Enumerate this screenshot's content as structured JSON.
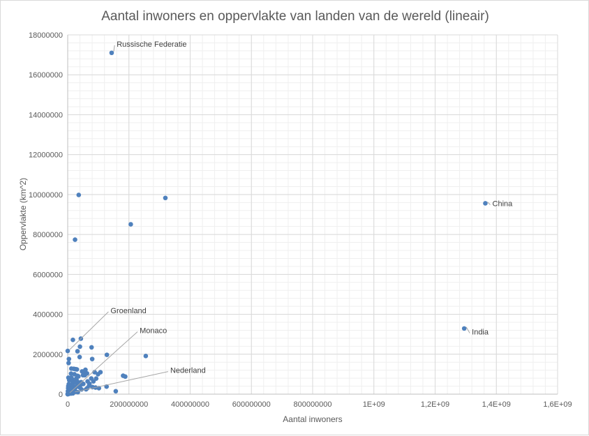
{
  "chart_data": {
    "type": "scatter",
    "title": "Aantal inwoners en oppervlakte van landen van de wereld (lineair)",
    "xlabel": "Aantal inwoners",
    "ylabel": "Oppervlakte (km^2)",
    "xlim": [
      0,
      1600000000
    ],
    "ylim": [
      0,
      18000000
    ],
    "grid": true,
    "color": "#4f81bd",
    "x_ticks": [
      0,
      200000000,
      400000000,
      600000000,
      800000000,
      1000000000,
      1200000000,
      1400000000,
      1600000000
    ],
    "x_tick_labels": [
      "0",
      "200000000",
      "400000000",
      "600000000",
      "800000000",
      "1E+09",
      "1,2E+09",
      "1,4E+09",
      "1,6E+09"
    ],
    "y_ticks": [
      0,
      2000000,
      4000000,
      6000000,
      8000000,
      10000000,
      12000000,
      14000000,
      16000000,
      18000000
    ],
    "y_tick_labels": [
      "0",
      "2000000",
      "4000000",
      "6000000",
      "8000000",
      "10000000",
      "12000000",
      "14000000",
      "16000000",
      "18000000"
    ],
    "points": [
      [
        143500000,
        17100000
      ],
      [
        1364000000,
        9560000
      ],
      [
        1295000000,
        3290000
      ],
      [
        319000000,
        9830000
      ],
      [
        36000000,
        9980000
      ],
      [
        206000000,
        8510000
      ],
      [
        24000000,
        7740000
      ],
      [
        43000000,
        2780000
      ],
      [
        40000000,
        2380000
      ],
      [
        17000000,
        2720000
      ],
      [
        78000000,
        2345000
      ],
      [
        128000000,
        1970000
      ],
      [
        255000000,
        1910000
      ],
      [
        4000000,
        1760000
      ],
      [
        80000000,
        1760000
      ],
      [
        32000000,
        2150000
      ],
      [
        39000000,
        1860000
      ],
      [
        3000000,
        1560000
      ],
      [
        12000000,
        1280000
      ],
      [
        20000000,
        1270000
      ],
      [
        26000000,
        1250000
      ],
      [
        30000000,
        1240000
      ],
      [
        58000000,
        1220000
      ],
      [
        54000000,
        1130000
      ],
      [
        47000000,
        1140000
      ],
      [
        107000000,
        1100000
      ],
      [
        99000000,
        1000000
      ],
      [
        11000000,
        1030000
      ],
      [
        22000000,
        1000000
      ],
      [
        56000000,
        950000
      ],
      [
        32000000,
        918000
      ],
      [
        50000000,
        950000
      ],
      [
        12000000,
        825000
      ],
      [
        2300000,
        824000
      ],
      [
        181000000,
        923000
      ],
      [
        188000000,
        881000
      ],
      [
        77000000,
        784000
      ],
      [
        28000000,
        780000
      ],
      [
        14000000,
        753000
      ],
      [
        5000000,
        700000
      ],
      [
        16000000,
        640000
      ],
      [
        26000000,
        650000
      ],
      [
        44000000,
        600000
      ],
      [
        65000000,
        640000
      ],
      [
        38000000,
        580000
      ],
      [
        22000000,
        587000
      ],
      [
        47000000,
        505000
      ],
      [
        51000000,
        513000
      ],
      [
        33000000,
        450000
      ],
      [
        36000000,
        447000
      ],
      [
        91000000,
        331000
      ],
      [
        127000000,
        378000
      ],
      [
        81000000,
        357000
      ],
      [
        64000000,
        301000
      ],
      [
        60000000,
        242000
      ],
      [
        102000000,
        300000
      ],
      [
        157000000,
        147000
      ],
      [
        45000000,
        238000
      ],
      [
        9000000,
        450000
      ],
      [
        10000000,
        340000
      ],
      [
        4000000,
        268000
      ],
      [
        22000000,
        239000
      ],
      [
        19000000,
        237000
      ],
      [
        2000000,
        181000
      ],
      [
        25000000,
        120000
      ],
      [
        15000000,
        130000
      ],
      [
        5000000,
        110000
      ],
      [
        10000000,
        92000
      ],
      [
        17000000,
        41500
      ],
      [
        11000000,
        30500
      ],
      [
        7000000,
        88000
      ],
      [
        1500000,
        60000
      ],
      [
        3000000,
        45000
      ],
      [
        1000000,
        30000
      ],
      [
        500000,
        20000
      ],
      [
        2000000,
        400000
      ],
      [
        1500000,
        300000
      ],
      [
        800000,
        150000
      ],
      [
        6000000,
        200000
      ],
      [
        8000000,
        350000
      ],
      [
        3500000,
        500000
      ],
      [
        12000000,
        470000
      ],
      [
        18000000,
        400000
      ],
      [
        28000000,
        360000
      ],
      [
        23000000,
        200000
      ],
      [
        33000000,
        100000
      ],
      [
        40000000,
        330000
      ],
      [
        70000000,
        430000
      ],
      [
        84000000,
        640000
      ],
      [
        93000000,
        780000
      ],
      [
        5500000,
        52000
      ],
      [
        9500000,
        160000
      ],
      [
        13500000,
        210000
      ],
      [
        4500000,
        70000
      ],
      [
        7500000,
        120000
      ],
      [
        2500000,
        90000
      ],
      [
        11500000,
        260000
      ],
      [
        15500000,
        300000
      ],
      [
        20500000,
        120000
      ],
      [
        6500000,
        35000
      ],
      [
        3000000,
        10000
      ],
      [
        1200000,
        5000
      ],
      [
        300000,
        1000
      ],
      [
        38000,
        2
      ],
      [
        1000,
        5000
      ],
      [
        40000,
        300
      ],
      [
        1800000,
        80000
      ],
      [
        56000,
        2166086
      ],
      [
        16900000,
        41543
      ],
      [
        26000000,
        580000
      ],
      [
        29000000,
        710000
      ],
      [
        35000000,
        890000
      ],
      [
        63000000,
        1040000
      ],
      [
        71000000,
        520000
      ],
      [
        88000000,
        1100000
      ]
    ],
    "callouts": [
      {
        "label": "Russische Federatie",
        "x": 143500000,
        "y": 17100000,
        "lx": 160000000,
        "ly": 17550000
      },
      {
        "label": "China",
        "x": 1364000000,
        "y": 9560000,
        "lx": 1387000000,
        "ly": 9560000
      },
      {
        "label": "India",
        "x": 1295000000,
        "y": 3290000,
        "lx": 1320000000,
        "ly": 3130000
      },
      {
        "label": "Groenland",
        "x": 56000,
        "y": 2166086,
        "lx": 140000000,
        "ly": 4200000
      },
      {
        "label": "Monaco",
        "x": 38000,
        "y": 2,
        "lx": 235000000,
        "ly": 3200000
      },
      {
        "label": "Nederland",
        "x": 16900000,
        "y": 41543,
        "lx": 335000000,
        "ly": 1200000
      }
    ]
  }
}
